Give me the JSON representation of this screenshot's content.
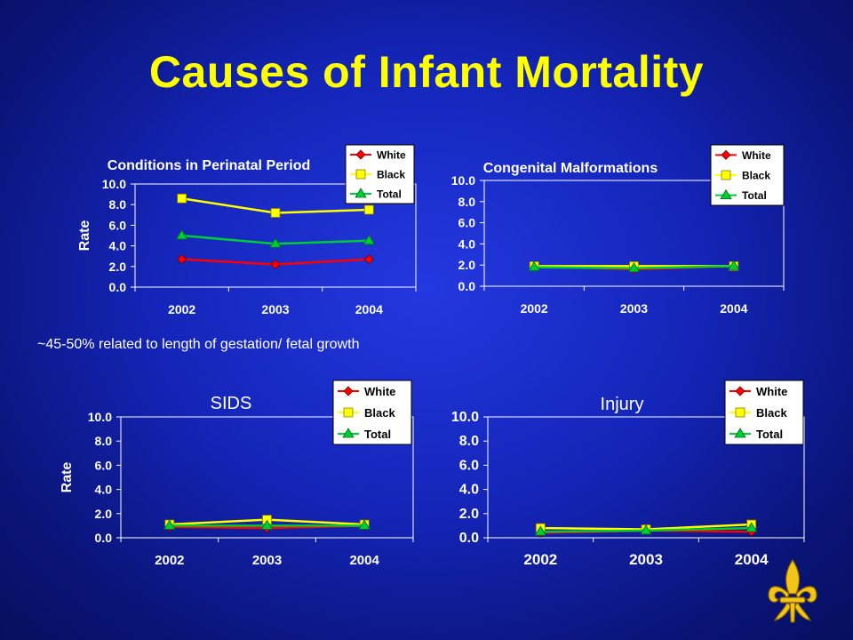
{
  "slide": {
    "title": "Causes of Infant Mortality",
    "note": "~45-50% related to length of gestation/ fetal growth"
  },
  "colors": {
    "background": "#1425b8",
    "title": "#ffff00",
    "white_series": "#ff0000",
    "black_series": "#ffff00",
    "total_series": "#00cc33"
  },
  "chart_data": [
    {
      "type": "line",
      "title": "Conditions in Perinatal Period",
      "ylabel": "Rate",
      "categories": [
        "2002",
        "2003",
        "2004"
      ],
      "ylim": [
        0,
        10
      ],
      "yticks": [
        "0.0",
        "2.0",
        "4.0",
        "6.0",
        "8.0",
        "10.0"
      ],
      "series": [
        {
          "name": "White",
          "values": [
            2.7,
            2.2,
            2.7
          ]
        },
        {
          "name": "Black",
          "values": [
            8.6,
            7.2,
            7.5
          ]
        },
        {
          "name": "Total",
          "values": [
            5.0,
            4.2,
            4.5
          ]
        }
      ],
      "legend": "top-right"
    },
    {
      "type": "line",
      "title": "Congenital Malformations",
      "ylabel": "",
      "categories": [
        "2002",
        "2003",
        "2004"
      ],
      "ylim": [
        0,
        10
      ],
      "yticks": [
        "0.0",
        "2.0",
        "4.0",
        "6.0",
        "8.0",
        "10.0"
      ],
      "series": [
        {
          "name": "White",
          "values": [
            1.9,
            1.6,
            1.9
          ]
        },
        {
          "name": "Black",
          "values": [
            1.9,
            1.9,
            1.9
          ]
        },
        {
          "name": "Total",
          "values": [
            1.8,
            1.7,
            1.9
          ]
        }
      ],
      "legend": "top-right"
    },
    {
      "type": "line",
      "title": "SIDS",
      "ylabel": "Rate",
      "categories": [
        "2002",
        "2003",
        "2004"
      ],
      "ylim": [
        0,
        10
      ],
      "yticks": [
        "0.0",
        "2.0",
        "4.0",
        "6.0",
        "8.0",
        "10.0"
      ],
      "series": [
        {
          "name": "White",
          "values": [
            0.9,
            0.8,
            1.0
          ]
        },
        {
          "name": "Black",
          "values": [
            1.1,
            1.5,
            1.1
          ]
        },
        {
          "name": "Total",
          "values": [
            1.0,
            1.0,
            1.0
          ]
        }
      ],
      "legend": "top-right"
    },
    {
      "type": "line",
      "title": "Injury",
      "ylabel": "",
      "categories": [
        "2002",
        "2003",
        "2004"
      ],
      "ylim": [
        0,
        10
      ],
      "yticks": [
        "0.0",
        "2.0",
        "4.0",
        "6.0",
        "8.0",
        "10.0"
      ],
      "series": [
        {
          "name": "White",
          "values": [
            0.4,
            0.6,
            0.5
          ]
        },
        {
          "name": "Black",
          "values": [
            0.8,
            0.7,
            1.1
          ]
        },
        {
          "name": "Total",
          "values": [
            0.5,
            0.6,
            0.8
          ]
        }
      ],
      "legend": "top-right"
    }
  ]
}
